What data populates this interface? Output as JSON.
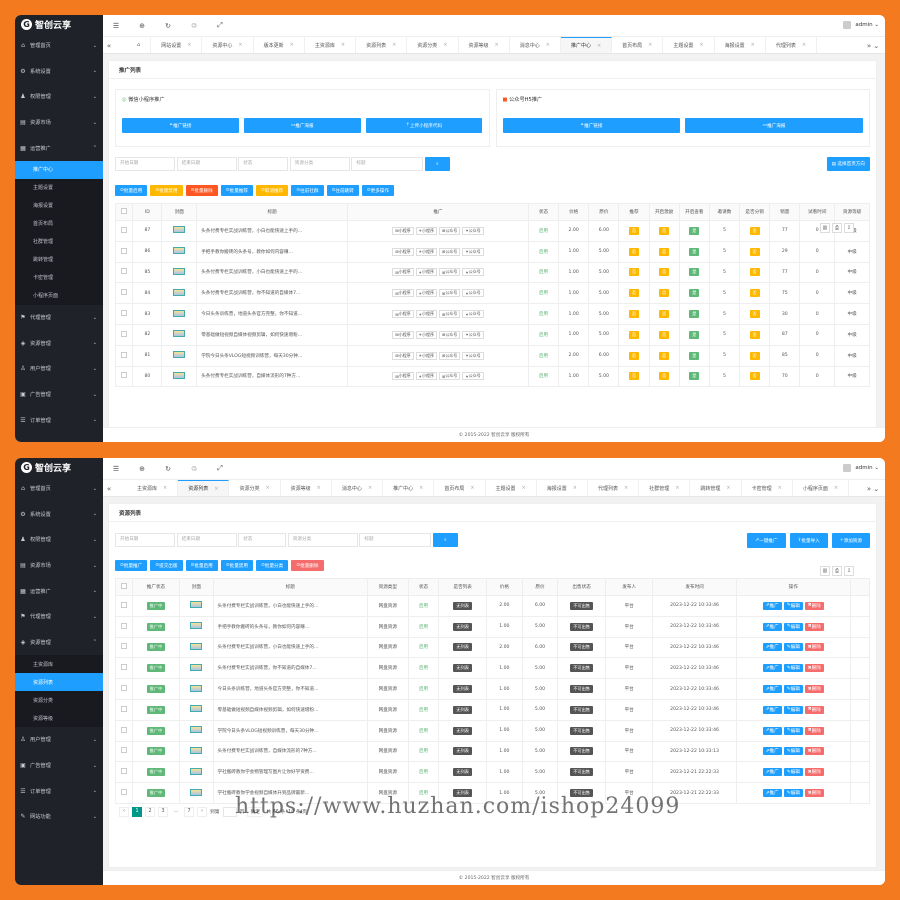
{
  "brand": "智创云享",
  "user": "admin",
  "footer": "© 2015-2022 智创云享 版权所有",
  "watermark": "https://www.huzhan.com/ishop24099",
  "colors": {
    "orange_bg": "#f47a1f",
    "sidebar": "#20222a",
    "accent": "#1e9fff"
  },
  "screen1": {
    "menu": [
      {
        "icon": "⌂",
        "label": "管理首页",
        "expanded": false
      },
      {
        "icon": "⚙",
        "label": "系统设置",
        "expanded": false
      },
      {
        "icon": "♟",
        "label": "权限管理",
        "expanded": false
      },
      {
        "icon": "▤",
        "label": "资源市场",
        "expanded": false
      },
      {
        "icon": "▦",
        "label": "运营推广",
        "expanded": true
      }
    ],
    "submenu": [
      {
        "label": "推广中心",
        "active": true
      },
      {
        "label": "主题设置",
        "active": false
      },
      {
        "label": "海报设置",
        "active": false
      },
      {
        "label": "首页布局",
        "active": false
      },
      {
        "label": "社群管理",
        "active": false
      },
      {
        "label": "跳转管理",
        "active": false
      },
      {
        "label": "卡密管理",
        "active": false
      },
      {
        "label": "小程序页面",
        "active": false
      }
    ],
    "menu_after": [
      {
        "icon": "⚑",
        "label": "代理管理"
      },
      {
        "icon": "◈",
        "label": "资源管理"
      },
      {
        "icon": "♙",
        "label": "用户管理"
      },
      {
        "icon": "▣",
        "label": "广告管理"
      },
      {
        "icon": "☰",
        "label": "订单管理"
      }
    ],
    "tabs": [
      "网站设置",
      "资源中心",
      "版本更新",
      "主资源库",
      "资源列表",
      "资源分类",
      "资源等级",
      "消息中心",
      "推广中心",
      "首页布局",
      "主题设置",
      "海报设置",
      "代理列表"
    ],
    "active_tab": "推广中心",
    "card_title": "推广列表",
    "wechat": {
      "title": "微信小程序推广",
      "buttons": [
        "推广链接",
        "推广海报",
        "上传小程序代码"
      ]
    },
    "gzh": {
      "title": "公众号H5推广",
      "buttons": [
        "推广链接",
        "推广海报"
      ]
    },
    "filters": [
      "开始日期",
      "结束日期",
      "状态",
      "资源分类",
      "标题"
    ],
    "select_btn": "选择首页方向",
    "bulk": [
      {
        "label": "批量启用",
        "color": "blue"
      },
      {
        "label": "批量禁用",
        "color": "yel"
      },
      {
        "label": "批量删除",
        "color": "red"
      },
      {
        "label": "批量推荐",
        "color": "blue"
      },
      {
        "label": "取消推荐",
        "color": "yel"
      },
      {
        "label": "往前社群",
        "color": "blue"
      },
      {
        "label": "往前跳转",
        "color": "blue"
      },
      {
        "label": "更多操作",
        "color": "blue"
      }
    ],
    "columns": [
      "ID",
      "封面",
      "标题",
      "推广",
      "状态",
      "价格",
      "原价",
      "推荐",
      "开启激励",
      "开启查看",
      "邀请数",
      "是否分销",
      "销量",
      "试看时间",
      "资源等级"
    ],
    "pro_labels": [
      "小程序",
      "小程序",
      "公众号",
      "公众号"
    ],
    "rows": [
      {
        "id": "87",
        "title": "头条付费专栏实战训练营，小白也能快速上手的…",
        "status": "启用",
        "price": "2.00",
        "orig": "6.00",
        "invites": "5",
        "sales": "77",
        "trial": "0",
        "level": "中级"
      },
      {
        "id": "86",
        "title": "手把手教你搬砖的头条号，教你如何内容赚…",
        "status": "启用",
        "price": "1.00",
        "orig": "5.00",
        "invites": "5",
        "sales": "29",
        "trial": "0",
        "level": "中级"
      },
      {
        "id": "85",
        "title": "头条付费专栏实战训练营，小白也能快速上手的…",
        "status": "启用",
        "price": "1.00",
        "orig": "5.00",
        "invites": "5",
        "sales": "77",
        "trial": "0",
        "level": "中级"
      },
      {
        "id": "84",
        "title": "头条付费专栏实战训练营，你不知道的自媒体7…",
        "status": "启用",
        "price": "1.00",
        "orig": "5.00",
        "invites": "5",
        "sales": "75",
        "trial": "0",
        "level": "中级"
      },
      {
        "id": "83",
        "title": "今日头条训练营，地道头条官方完整，你不知道…",
        "status": "启用",
        "price": "1.00",
        "orig": "5.00",
        "invites": "5",
        "sales": "30",
        "trial": "0",
        "level": "中级"
      },
      {
        "id": "82",
        "title": "零基础做短视频自媒体视频剪辑，如何快速增粉…",
        "status": "启用",
        "price": "1.00",
        "orig": "5.00",
        "invites": "5",
        "sales": "87",
        "trial": "0",
        "level": "中级"
      },
      {
        "id": "81",
        "title": "学院今日头条VLOG短视频训练营，每天30分钟…",
        "status": "启用",
        "price": "2.00",
        "orig": "6.00",
        "invites": "5",
        "sales": "85",
        "trial": "0",
        "level": "中级"
      },
      {
        "id": "80",
        "title": "头条付费专栏实战训练营，自媒体流形的7种方…",
        "status": "启用",
        "price": "1.00",
        "orig": "5.00",
        "invites": "5",
        "sales": "70",
        "trial": "0",
        "level": "中级"
      }
    ],
    "yes_label": "否",
    "yes2_label": "是"
  },
  "screen2": {
    "menu_top": [
      {
        "icon": "⌂",
        "label": "管理首页"
      },
      {
        "icon": "⚙",
        "label": "系统设置"
      },
      {
        "icon": "♟",
        "label": "权限管理"
      },
      {
        "icon": "▤",
        "label": "资源市场"
      },
      {
        "icon": "▦",
        "label": "运营推广"
      },
      {
        "icon": "⚑",
        "label": "代理管理"
      },
      {
        "icon": "◈",
        "label": "资源管理"
      }
    ],
    "submenu": [
      {
        "label": "主资源库",
        "active": false
      },
      {
        "label": "资源列表",
        "active": true
      },
      {
        "label": "资源分类",
        "active": false
      },
      {
        "label": "资源等级",
        "active": false
      }
    ],
    "menu_after": [
      {
        "icon": "♙",
        "label": "用户管理"
      },
      {
        "icon": "▣",
        "label": "广告管理"
      },
      {
        "icon": "☰",
        "label": "订单管理"
      },
      {
        "icon": "✎",
        "label": "网站功能"
      }
    ],
    "tabs": [
      "主资源库",
      "资源列表",
      "资源分类",
      "资源等级",
      "消息中心",
      "推广中心",
      "首页布局",
      "主题设置",
      "海报设置",
      "代理列表",
      "社群管理",
      "跳转管理",
      "卡密管理",
      "小程序页面"
    ],
    "active_tab": "资源列表",
    "card_title": "资源列表",
    "filters": [
      "开始日期",
      "结束日期",
      "状态",
      "资源分类",
      "标题"
    ],
    "top_btns": [
      "一键推广",
      "批量导入",
      "添加资源"
    ],
    "bulk": [
      {
        "label": "批量推广",
        "color": "blue"
      },
      {
        "label": "提交出版",
        "color": "blue"
      },
      {
        "label": "批量启用",
        "color": "blue"
      },
      {
        "label": "批量禁用",
        "color": "blue"
      },
      {
        "label": "批量分类",
        "color": "blue"
      },
      {
        "label": "批量删除",
        "color": "pink"
      }
    ],
    "columns": [
      "推广状态",
      "封面",
      "标题",
      "资源类型",
      "状态",
      "是否列表",
      "价格",
      "原价",
      "出售状态",
      "发布人",
      "发布时间",
      "操作"
    ],
    "row_btns": [
      "推广",
      "编辑",
      "删除"
    ],
    "rows": [
      {
        "promo": "推广中",
        "title": "头条付费专栏实战训练营，小白也能快速上手的…",
        "type": "网盘资源",
        "status": "启用",
        "list": "无列表",
        "price": "2.00",
        "orig": "6.00",
        "sale": "不可出售",
        "pub": "平台",
        "time": "2023-12-22 10:33:46"
      },
      {
        "promo": "推广中",
        "title": "手把手教你搬砖的头条号，教你如何内容赚…",
        "type": "网盘资源",
        "status": "启用",
        "list": "无列表",
        "price": "1.00",
        "orig": "5.00",
        "sale": "不可出售",
        "pub": "平台",
        "time": "2023-12-22 10:33:46"
      },
      {
        "promo": "推广中",
        "title": "头条付费专栏实战训练营，小白也能快速上手的…",
        "type": "网盘资源",
        "status": "启用",
        "list": "无列表",
        "price": "2.00",
        "orig": "6.00",
        "sale": "不可出售",
        "pub": "平台",
        "time": "2023-12-22 10:33:46"
      },
      {
        "promo": "推广中",
        "title": "头条付费专栏实战训练营，你不知道的自媒体7…",
        "type": "网盘资源",
        "status": "启用",
        "list": "无列表",
        "price": "1.00",
        "orig": "5.00",
        "sale": "不可出售",
        "pub": "平台",
        "time": "2023-12-22 10:33:46"
      },
      {
        "promo": "推广中",
        "title": "今日头条训练营，地道头条官方完整，你不知道…",
        "type": "网盘资源",
        "status": "启用",
        "list": "无列表",
        "price": "1.00",
        "orig": "5.00",
        "sale": "不可出售",
        "pub": "平台",
        "time": "2023-12-22 10:33:46"
      },
      {
        "promo": "推广中",
        "title": "零基础做短视频自媒体视频剪辑，如何快速增粉…",
        "type": "网盘资源",
        "status": "启用",
        "list": "无列表",
        "price": "1.00",
        "orig": "5.00",
        "sale": "不可出售",
        "pub": "平台",
        "time": "2023-12-22 10:33:46"
      },
      {
        "promo": "推广中",
        "title": "学院今日头条VLOG短视频训练营，每天30分钟…",
        "type": "网盘资源",
        "status": "启用",
        "list": "无列表",
        "price": "1.00",
        "orig": "5.00",
        "sale": "不可出售",
        "pub": "平台",
        "time": "2023-12-22 10:33:46"
      },
      {
        "promo": "推广中",
        "title": "头条付费专栏实战训练营，自媒体流形的7种方…",
        "type": "网盘资源",
        "status": "启用",
        "list": "无列表",
        "price": "1.00",
        "orig": "5.00",
        "sale": "不可出售",
        "pub": "平台",
        "time": "2023-12-22 10:33:13"
      },
      {
        "promo": "推广中",
        "title": "学社搬砖教你学会物管理写图片让你好学资费…",
        "type": "网盘资源",
        "status": "启用",
        "list": "无列表",
        "price": "1.00",
        "orig": "5.00",
        "sale": "不可出售",
        "pub": "平台",
        "time": "2023-12-21 22:22:33"
      },
      {
        "promo": "推广中",
        "title": "学社搬砖教你学会视频自媒体升到品牌最新…",
        "type": "网盘资源",
        "status": "启用",
        "list": "无列表",
        "price": "1.00",
        "orig": "5.00",
        "sale": "不可出售",
        "pub": "平台",
        "time": "2023-12-21 22:22:33"
      }
    ],
    "pager": {
      "pages": [
        "1",
        "2",
        "3",
        "...",
        "7"
      ],
      "goto": "到第",
      "page_word": "页",
      "confirm": "确定",
      "total": "共 66 条",
      "per_page": "10 条/页"
    }
  }
}
